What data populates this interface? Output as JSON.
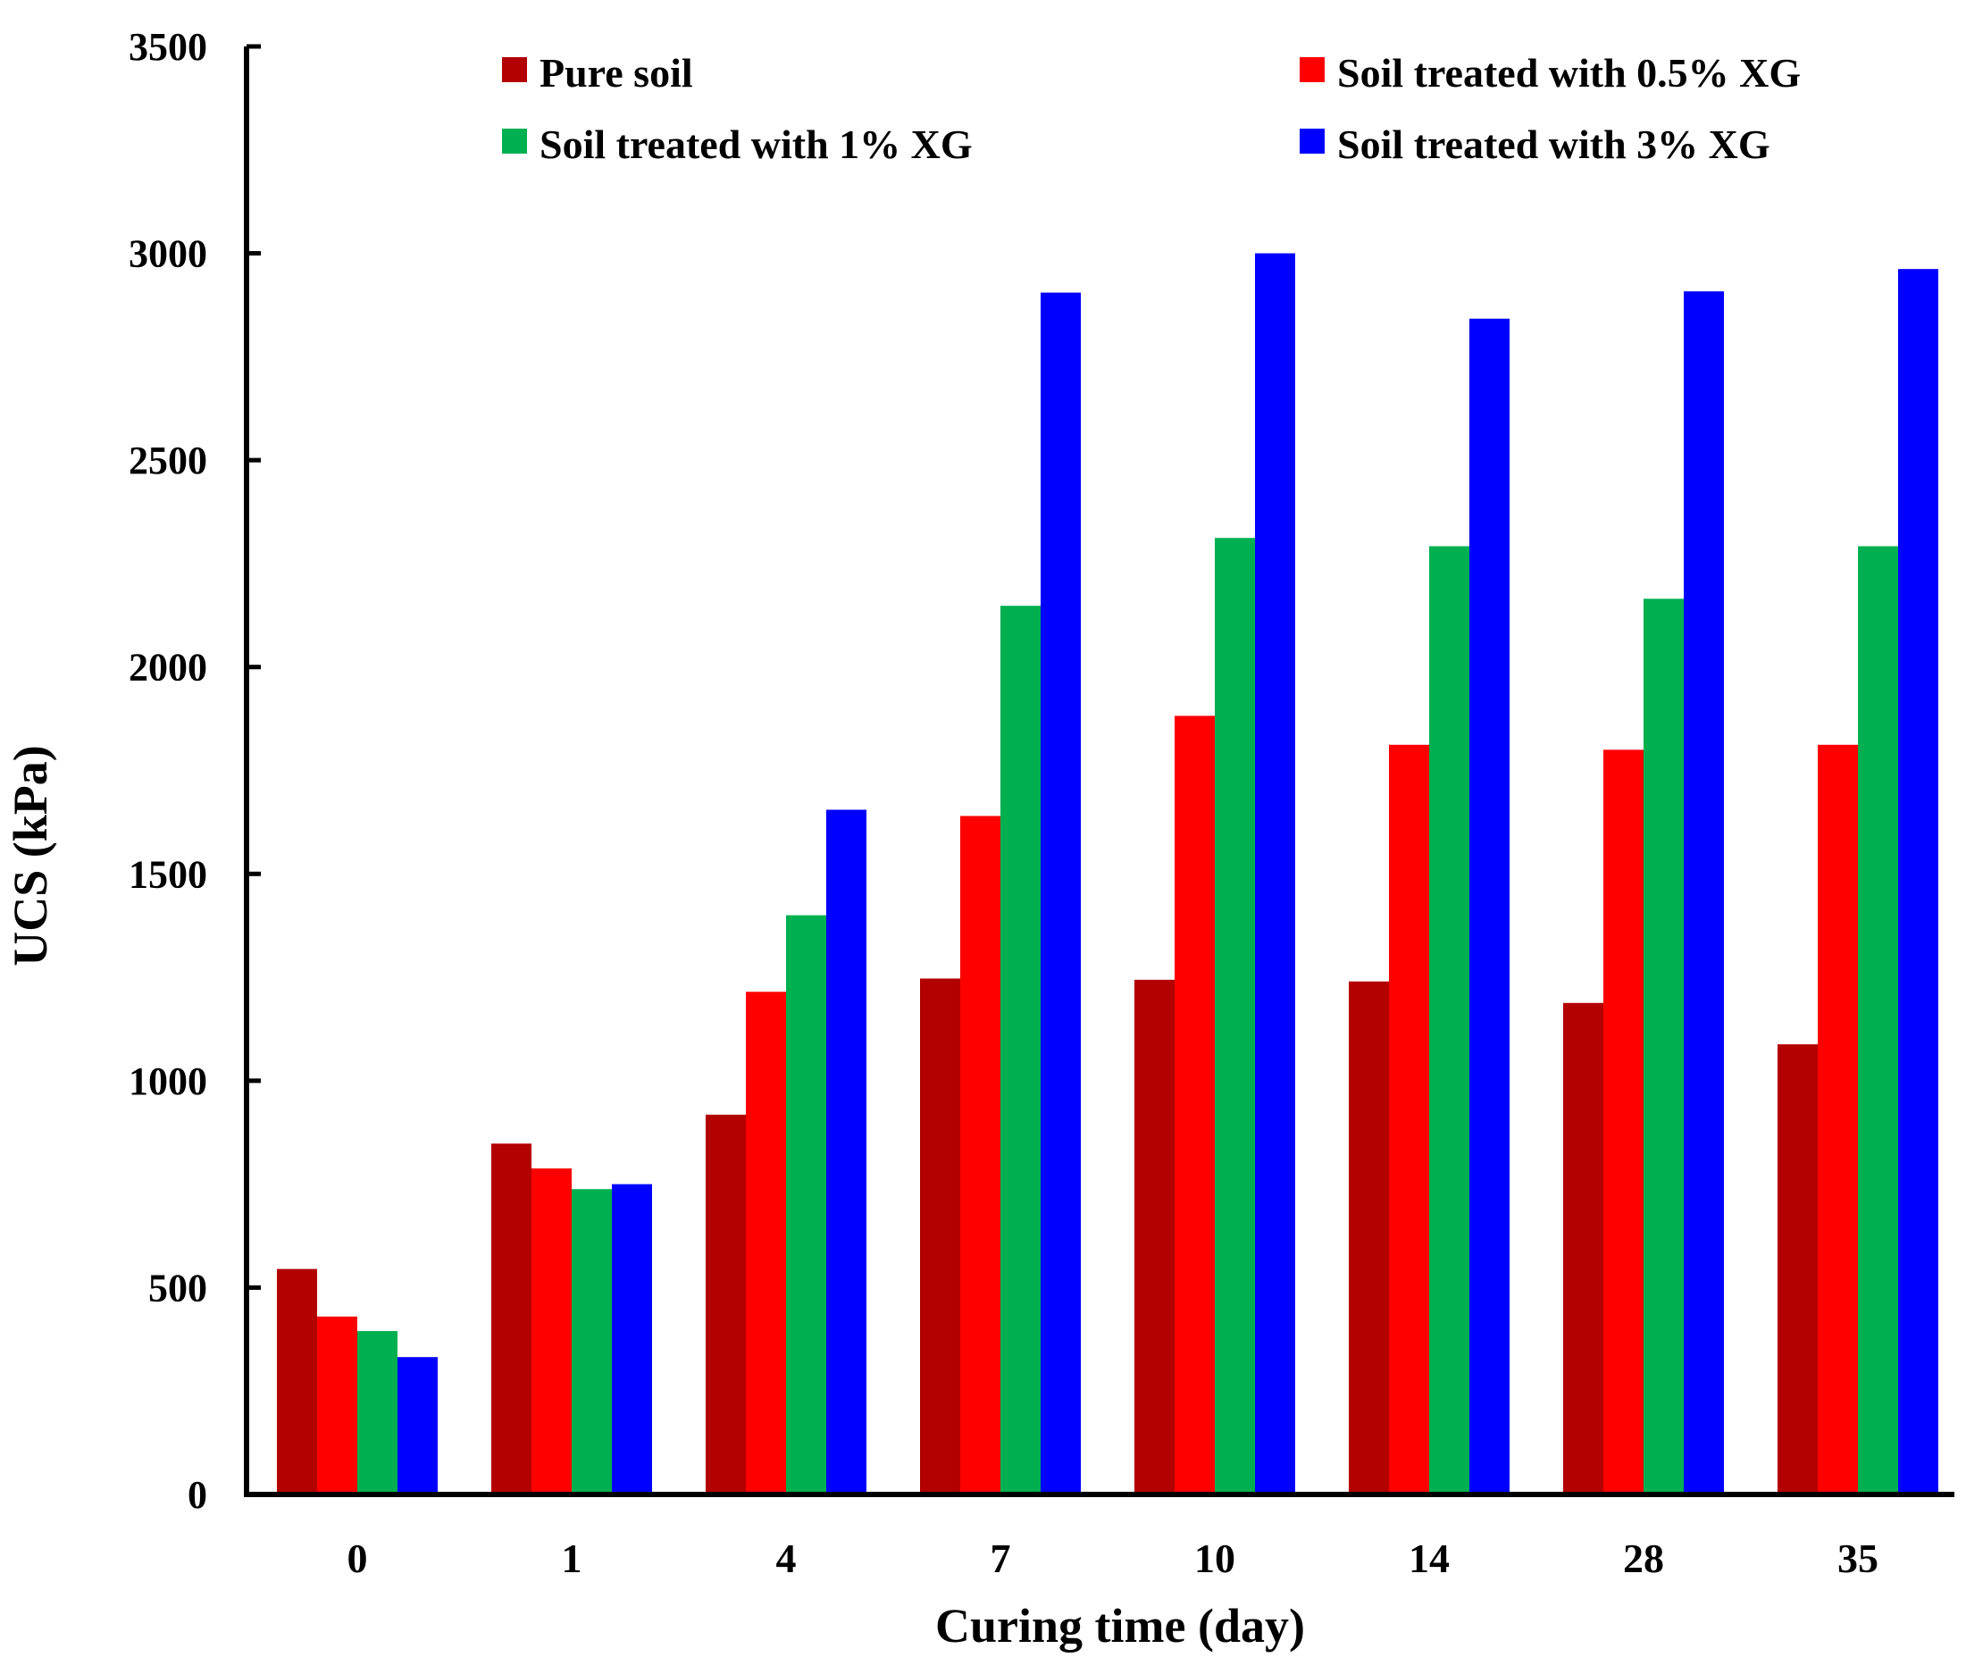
{
  "chart_data": {
    "type": "bar",
    "title": "",
    "xlabel": "Curing time (day)",
    "ylabel": "UCS (kPa)",
    "ylim": [
      0,
      3500
    ],
    "yticks": [
      "0",
      "500",
      "1000",
      "1500",
      "2000",
      "2500",
      "3000",
      "3500"
    ],
    "grid": false,
    "legend_position": "top",
    "categories": [
      "0",
      "1",
      "4",
      "7",
      "10",
      "14",
      "28",
      "35"
    ],
    "series": [
      {
        "name": "Pure soil",
        "color": "#b30000",
        "values": [
          545,
          848,
          918,
          1247,
          1244,
          1240,
          1188,
          1088
        ]
      },
      {
        "name": "Soil treated with 0.5% XG",
        "color": "#ff0000",
        "values": [
          430,
          788,
          1215,
          1640,
          1882,
          1812,
          1800,
          1812
        ]
      },
      {
        "name": "Soil treated with 1% XG",
        "color": "#00b050",
        "values": [
          395,
          738,
          1400,
          2148,
          2312,
          2292,
          2165,
          2292
        ]
      },
      {
        "name": "Soil treated with 3% XG",
        "color": "#0000ff",
        "values": [
          332,
          750,
          1655,
          2905,
          3000,
          2842,
          2908,
          2962
        ]
      }
    ]
  }
}
